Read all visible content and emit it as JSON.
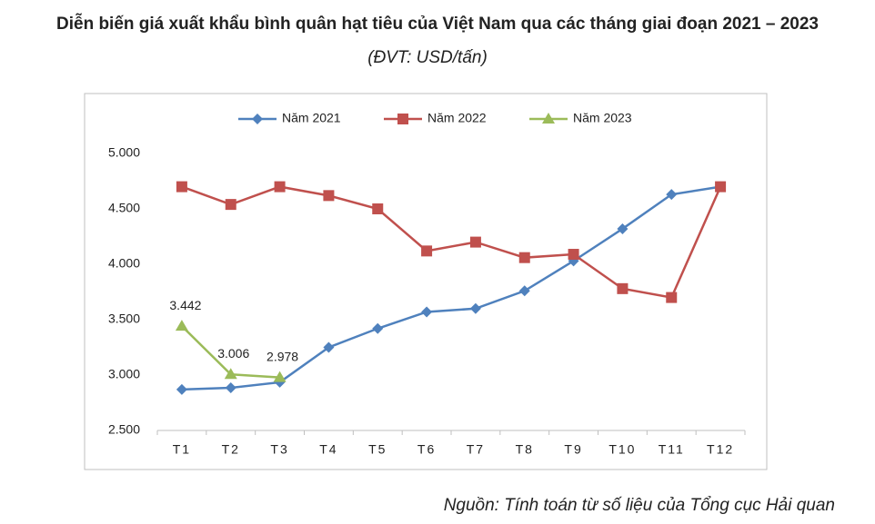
{
  "chart_data": {
    "type": "line",
    "title": "Diễn biến giá xuất khẩu bình quân hạt tiêu của Việt Nam qua các tháng giai đoạn 2021 – 2023",
    "subtitle": "(ĐVT: USD/tấn)",
    "source": "Nguồn: Tính toán từ số liệu của Tổng cục Hải quan",
    "categories": [
      "T1",
      "T2",
      "T3",
      "T4",
      "T5",
      "T6",
      "T7",
      "T8",
      "T9",
      "T10",
      "T11",
      "T12"
    ],
    "series": [
      {
        "name": "Năm 2021",
        "color": "#4f81bd",
        "marker": "diamond",
        "values": [
          2870,
          2885,
          2935,
          3250,
          3420,
          3570,
          3600,
          3760,
          4030,
          4320,
          4630,
          4700
        ]
      },
      {
        "name": "Năm 2022",
        "color": "#c0504d",
        "marker": "square",
        "values": [
          4700,
          4540,
          4700,
          4620,
          4500,
          4120,
          4200,
          4060,
          4090,
          3780,
          3700,
          4700
        ]
      },
      {
        "name": "Năm 2023",
        "color": "#9bbb59",
        "marker": "triangle",
        "values": [
          3442,
          3006,
          2978,
          null,
          null,
          null,
          null,
          null,
          null,
          null,
          null,
          null
        ],
        "value_labels": [
          "3.442",
          "3.006",
          "2.978",
          null,
          null,
          null,
          null,
          null,
          null,
          null,
          null,
          null
        ]
      }
    ],
    "ylim": [
      2500,
      5000
    ],
    "yticks": [
      {
        "value": 2500,
        "label": "2.500"
      },
      {
        "value": 3000,
        "label": "3.000"
      },
      {
        "value": 3500,
        "label": "3.500"
      },
      {
        "value": 4000,
        "label": "4.000"
      },
      {
        "value": 4500,
        "label": "4.500"
      },
      {
        "value": 5000,
        "label": "5.000"
      }
    ],
    "grid": false,
    "legend": "top"
  }
}
